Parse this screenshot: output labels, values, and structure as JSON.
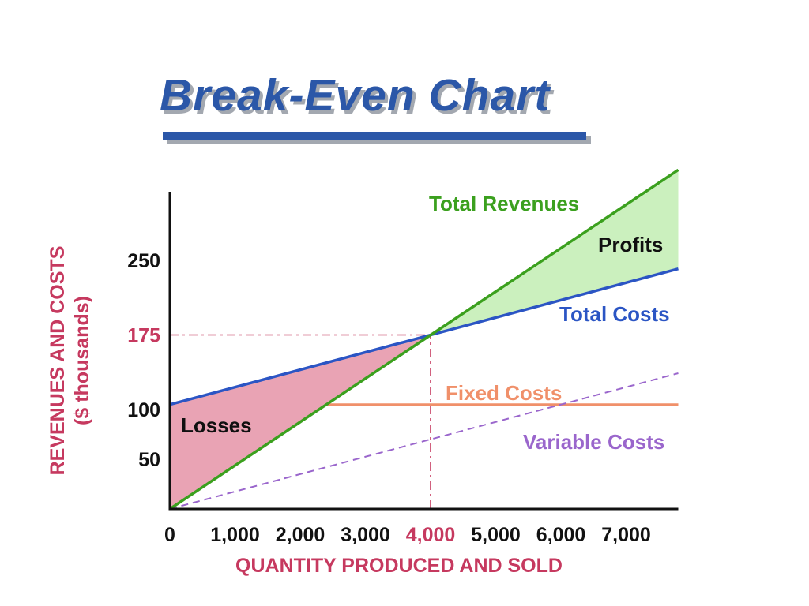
{
  "slide": {
    "title": "Break-Even Chart"
  },
  "colors": {
    "title": "#2B57A8",
    "shadow": "#A3A8B0",
    "crimson": "#C6395F",
    "revenue_green": "#3BA01E",
    "cost_blue": "#2B55C4",
    "fixed_salmon": "#F0906A",
    "variable_purple": "#9A66CC",
    "losses_fill": "#E9A3B4",
    "profits_fill": "#CBF0BE",
    "axis_black": "#111111"
  },
  "chart_data": {
    "type": "line",
    "title": "Break-Even Chart",
    "xlabel": "QUANTITY PRODUCED AND SOLD",
    "ylabel": "REVENUES AND COSTS ($ thousands)",
    "ylabel_lines": [
      "REVENUES AND COSTS",
      "($ thousands)"
    ],
    "xlim": [
      0,
      7800
    ],
    "ylim": [
      0,
      350
    ],
    "x_ticks": [
      {
        "label": "0",
        "value": 0,
        "accent": false
      },
      {
        "label": "1,000",
        "value": 1000,
        "accent": false
      },
      {
        "label": "2,000",
        "value": 2000,
        "accent": false
      },
      {
        "label": "3,000",
        "value": 3000,
        "accent": false
      },
      {
        "label": "4,000",
        "value": 4000,
        "accent": true
      },
      {
        "label": "5,000",
        "value": 5000,
        "accent": false
      },
      {
        "label": "6,000",
        "value": 6000,
        "accent": false
      },
      {
        "label": "7,000",
        "value": 7000,
        "accent": false
      }
    ],
    "y_ticks": [
      {
        "label": "250",
        "value": 250,
        "accent": false
      },
      {
        "label": "175",
        "value": 175,
        "accent": true
      },
      {
        "label": "100",
        "value": 100,
        "accent": false
      },
      {
        "label": "50",
        "value": 50,
        "accent": false
      }
    ],
    "series": [
      {
        "name": "Total Revenues",
        "color_key": "revenue_green",
        "style": "solid",
        "width": 3.5,
        "points": [
          [
            0,
            0
          ],
          [
            7800,
            341
          ]
        ]
      },
      {
        "name": "Total Costs",
        "color_key": "cost_blue",
        "style": "solid",
        "width": 3.5,
        "points": [
          [
            0,
            105
          ],
          [
            7800,
            241.5
          ]
        ]
      },
      {
        "name": "Fixed Costs",
        "color_key": "fixed_salmon",
        "style": "solid",
        "width": 3,
        "points": [
          [
            0,
            105
          ],
          [
            7800,
            105
          ]
        ]
      },
      {
        "name": "Variable Costs",
        "color_key": "variable_purple",
        "style": "dashed",
        "width": 2,
        "points": [
          [
            0,
            0
          ],
          [
            7800,
            136.5
          ]
        ]
      }
    ],
    "regions": [
      {
        "name": "Losses",
        "color_key": "losses_fill",
        "points": [
          [
            0,
            0
          ],
          [
            0,
            105
          ],
          [
            4000,
            175
          ]
        ]
      },
      {
        "name": "Profits",
        "color_key": "profits_fill",
        "points": [
          [
            4000,
            175
          ],
          [
            7800,
            341
          ],
          [
            7800,
            241.5
          ]
        ]
      }
    ],
    "break_even": {
      "quantity": 4000,
      "value": 175
    },
    "guides": [
      {
        "name": "break-even-horizontal",
        "points": [
          [
            0,
            175
          ],
          [
            4000,
            175
          ]
        ]
      },
      {
        "name": "break-even-vertical",
        "points": [
          [
            4000,
            0
          ],
          [
            4000,
            175
          ]
        ]
      }
    ],
    "annotations": {
      "total_revenues": "Total Revenues",
      "profits": "Profits",
      "total_costs": "Total Costs",
      "fixed_costs": "Fixed Costs",
      "variable_costs": "Variable Costs",
      "losses": "Losses"
    }
  }
}
